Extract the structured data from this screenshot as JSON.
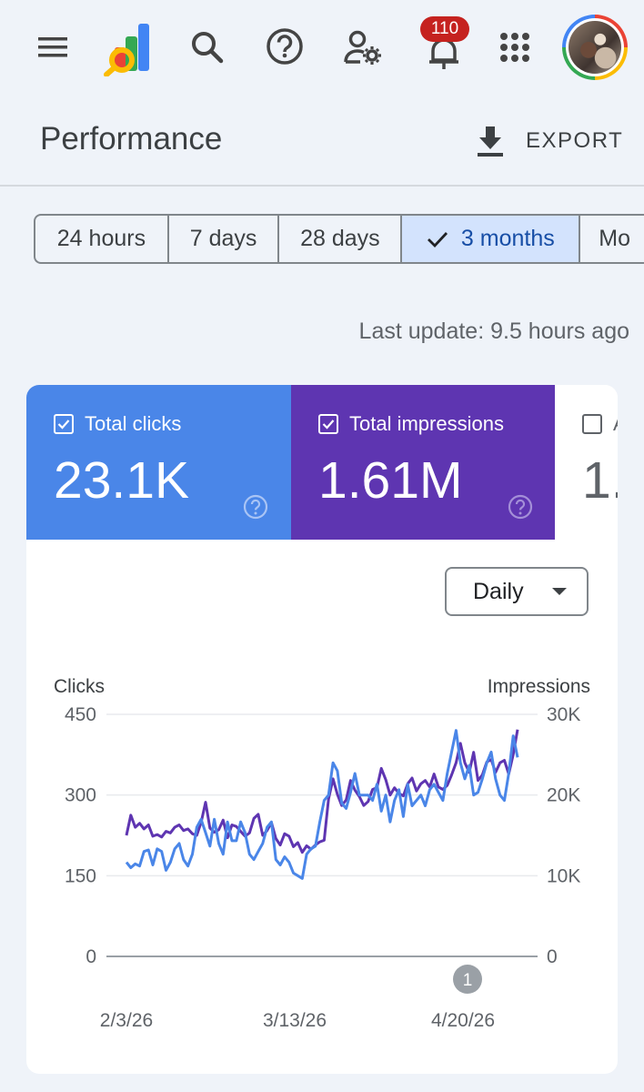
{
  "topbar": {
    "icons": [
      "menu-icon",
      "search-console-logo",
      "search-icon",
      "help-icon",
      "manage-users-icon",
      "notifications-icon",
      "apps-icon"
    ],
    "notifications_count": "110"
  },
  "header": {
    "title": "Performance",
    "export_label": "EXPORT"
  },
  "ranges": [
    "24 hours",
    "7 days",
    "28 days",
    "3 months",
    "Mo"
  ],
  "selected_range": "3 months",
  "last_update": "Last update: 9.5 hours ago",
  "metrics": {
    "clicks": {
      "label": "Total clicks",
      "value": "23.1K",
      "checked": true,
      "color": "#4a86e8"
    },
    "impressions": {
      "label": "Total impressions",
      "value": "1.61M",
      "checked": true,
      "color": "#5e35b1"
    },
    "ctr": {
      "label": "A",
      "value": "1.",
      "checked": false
    }
  },
  "granularity": "Daily",
  "chart_data": {
    "type": "line",
    "x_ticks": [
      "2/3/26",
      "3/13/26",
      "4/20/26"
    ],
    "annotation": "1",
    "series": [
      {
        "name": "Clicks",
        "axis": "left",
        "color": "#4a86e8",
        "values": [
          175,
          165,
          172,
          168,
          195,
          198,
          170,
          200,
          195,
          160,
          175,
          200,
          210,
          180,
          168,
          190,
          240,
          255,
          230,
          205,
          255,
          210,
          190,
          250,
          215,
          215,
          250,
          230,
          190,
          180,
          195,
          210,
          240,
          250,
          180,
          170,
          185,
          175,
          155,
          150,
          145,
          190,
          200,
          205,
          250,
          290,
          300,
          360,
          345,
          285,
          275,
          305,
          340,
          300,
          300,
          300,
          290,
          320,
          270,
          300,
          250,
          290,
          310,
          260,
          320,
          280,
          290,
          300,
          280,
          310,
          320,
          305,
          290,
          340,
          380,
          420,
          360,
          330,
          355,
          300,
          305,
          330,
          360,
          380,
          330,
          300,
          290,
          340,
          410,
          370
        ]
      },
      {
        "name": "Impressions",
        "axis": "right",
        "color": "#5e35b1",
        "values": [
          15000,
          17500,
          16000,
          16500,
          15800,
          16300,
          14900,
          15100,
          14800,
          15500,
          15300,
          16000,
          16300,
          15600,
          15800,
          15200,
          15000,
          16600,
          19100,
          15900,
          15400,
          15700,
          16900,
          14700,
          16300,
          16100,
          15500,
          14900,
          15300,
          17100,
          17600,
          15000,
          15600,
          16600,
          14600,
          13800,
          15200,
          14900,
          13600,
          14100,
          12900,
          13700,
          13300,
          13800,
          14200,
          14400,
          19500,
          22000,
          20100,
          18700,
          19400,
          21800,
          20600,
          19800,
          18700,
          19200,
          20700,
          20900,
          23300,
          21900,
          20000,
          20900,
          20200,
          19900,
          21400,
          22100,
          20500,
          21400,
          21800,
          21000,
          22600,
          21000,
          20700,
          21200,
          22500,
          24000,
          26400,
          24000,
          22800,
          25300,
          21800,
          22500,
          24100,
          24400,
          22800,
          24000,
          24300,
          22600,
          25000,
          28100
        ]
      }
    ],
    "y_left": {
      "label": "Clicks",
      "ticks": [
        0,
        150,
        300,
        450
      ],
      "range": [
        0,
        450
      ]
    },
    "y_right": {
      "label": "Impressions",
      "ticks": [
        "0",
        "10K",
        "20K",
        "30K"
      ],
      "range": [
        0,
        30000
      ]
    }
  }
}
